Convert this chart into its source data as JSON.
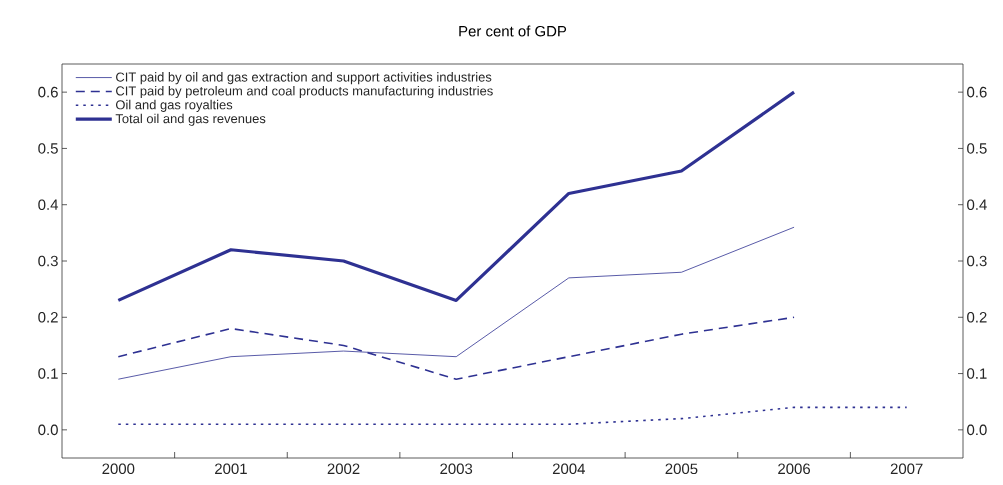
{
  "chart_data": {
    "type": "line",
    "title": "Per cent of GDP",
    "categories": [
      "2000",
      "2001",
      "2002",
      "2003",
      "2004",
      "2005",
      "2006",
      "2007"
    ],
    "series": [
      {
        "name": "CIT paid by oil and gas extraction and support activities industries",
        "color": "#2e3192",
        "line_style": "solid",
        "values": [
          0.09,
          0.13,
          0.14,
          0.13,
          0.27,
          0.28,
          0.36,
          null
        ]
      },
      {
        "name": "CIT paid by petroleum and coal products manufacturing industries",
        "color": "#2e3192",
        "line_style": "dashed",
        "values": [
          0.13,
          0.18,
          0.15,
          0.09,
          0.13,
          0.17,
          0.2,
          null
        ]
      },
      {
        "name": "Oil and gas royalties",
        "color": "#2e3192",
        "line_style": "dotted",
        "values": [
          0.01,
          0.01,
          0.01,
          0.01,
          0.01,
          0.02,
          0.04,
          0.04
        ]
      },
      {
        "name": "Total oil and gas revenues",
        "color": "#2e3192",
        "line_style": "solid",
        "values": [
          0.23,
          0.32,
          0.3,
          0.23,
          0.42,
          0.46,
          0.6,
          null
        ]
      }
    ],
    "ylim": [
      -0.05,
      0.65
    ],
    "yticks": [
      {
        "value": 0,
        "label": "0.0"
      },
      0.1,
      0.2,
      0.3,
      0.4,
      0.5,
      0.6
    ],
    "y2lim": [
      -0.05,
      0.65
    ],
    "y2ticks": [
      {
        "value": 0,
        "label": "0.0"
      },
      0.1,
      0.2,
      0.3,
      0.4,
      0.5,
      0.6
    ],
    "legend": "top left",
    "grid": false
  }
}
